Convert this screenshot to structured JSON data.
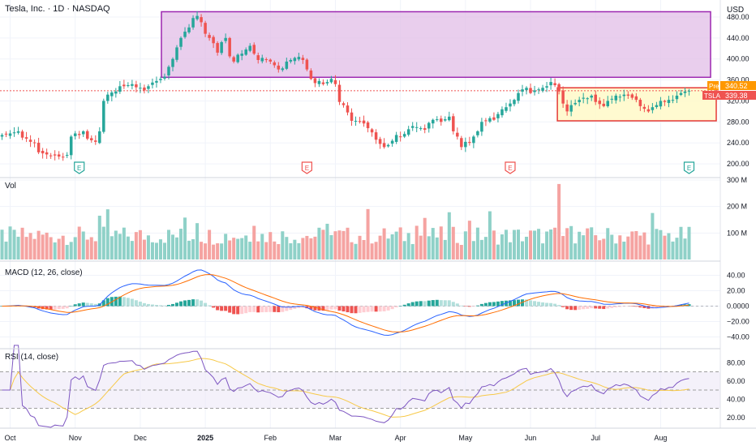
{
  "header": {
    "symbol_title": "Tesla, Inc. · 1D · NASDAQ",
    "currency": "USD"
  },
  "panes": {
    "volume_label": "Vol",
    "macd_label": "MACD (12, 26, close)",
    "rsi_label": "RSI (14, close)"
  },
  "badges": {
    "pre_label": "Pre",
    "pre_value": "340.52",
    "tsla_label": "TSLA",
    "tsla_value": "339.38"
  },
  "earnings_markers": [
    "E",
    "E",
    "E",
    "E"
  ],
  "x_axis_labels": [
    "Oct",
    "Nov",
    "Dec",
    "2025",
    "Feb",
    "Mar",
    "Apr",
    "May",
    "Jun",
    "Jul",
    "Aug"
  ],
  "price_axis": [
    "480.00",
    "440.00",
    "400.00",
    "360.00",
    "320.00",
    "280.00",
    "240.00",
    "200.00"
  ],
  "volume_axis": [
    "300 M",
    "200 M",
    "100 M"
  ],
  "macd_axis": [
    "40.00",
    "20.00",
    "0.0000",
    "−20.00",
    "−40.00"
  ],
  "rsi_axis": [
    "80.00",
    "60.00",
    "40.00",
    "20.00"
  ],
  "colors": {
    "up": "#26a69a",
    "down": "#ef5350",
    "vol_up": "#8fd1c8",
    "vol_down": "#f5a3a1",
    "macd_line": "#2962ff",
    "signal_line": "#ff6d00",
    "rsi_line": "#7e57c2",
    "rsi_ma": "#f7c948",
    "purple_box": "#9c27b0",
    "yellow_box_border": "#e53935",
    "yellow_box_fill": "#fff9c4"
  },
  "chart_data": [
    {
      "type": "candlestick",
      "title": "Tesla, Inc. · 1D · NASDAQ",
      "ylabel": "USD",
      "ylim": [
        180,
        500
      ],
      "x_ticks": [
        "Oct",
        "Nov",
        "Dec",
        "2025",
        "Feb",
        "Mar",
        "Apr",
        "May",
        "Jun",
        "Jul",
        "Aug"
      ],
      "last_price": 339.38,
      "premarket_price": 340.52,
      "close_series": [
        255,
        256,
        258,
        260,
        262,
        250,
        248,
        242,
        240,
        222,
        220,
        218,
        215,
        216,
        214,
        213,
        217,
        252,
        258,
        255,
        262,
        248,
        245,
        242,
        262,
        320,
        332,
        336,
        338,
        348,
        348,
        350,
        352,
        346,
        345,
        340,
        348,
        355,
        358,
        362,
        366,
        385,
        400,
        422,
        440,
        452,
        460,
        478,
        482,
        470,
        448,
        440,
        430,
        412,
        432,
        440,
        405,
        395,
        408,
        410,
        418,
        425,
        410,
        398,
        402,
        398,
        395,
        388,
        380,
        382,
        395,
        398,
        402,
        404,
        398,
        380,
        362,
        354,
        358,
        352,
        356,
        362,
        352,
        318,
        312,
        298,
        282,
        282,
        280,
        277,
        268,
        260,
        246,
        238,
        232,
        236,
        244,
        255,
        252,
        257,
        266,
        272,
        270,
        268,
        265,
        278,
        284,
        285,
        280,
        285,
        290,
        262,
        252,
        232,
        242,
        240,
        252,
        262,
        280,
        282,
        287,
        284,
        295,
        304,
        308,
        315,
        322,
        335,
        342,
        345,
        335,
        340,
        342,
        345,
        348,
        356,
        350,
        338,
        315,
        300,
        312,
        316,
        322,
        326,
        325,
        330,
        318,
        314,
        310,
        320,
        324,
        330,
        328,
        332,
        330,
        326,
        322,
        310,
        305,
        300,
        308,
        312,
        320,
        318,
        322,
        322,
        330,
        335,
        338,
        339.38
      ],
      "purple_zone": {
        "low": 365,
        "high": 490,
        "label": ""
      },
      "yellow_zone": {
        "low": 282,
        "high": 345,
        "label": ""
      },
      "earnings": [
        "E",
        "E",
        "E",
        "E"
      ]
    },
    {
      "type": "bar",
      "title": "Vol",
      "ylim": [
        0,
        300
      ],
      "unit": "M",
      "max_value": 300
    },
    {
      "type": "line",
      "title": "MACD (12, 26, close)",
      "ylim": [
        -50,
        50
      ],
      "series": [
        {
          "name": "MACD"
        },
        {
          "name": "Signal"
        }
      ]
    },
    {
      "type": "line",
      "title": "RSI (14, close)",
      "ylim": [
        10,
        90
      ],
      "bands": [
        30,
        70
      ],
      "series": [
        {
          "name": "RSI"
        },
        {
          "name": "RSI MA"
        }
      ]
    }
  ]
}
